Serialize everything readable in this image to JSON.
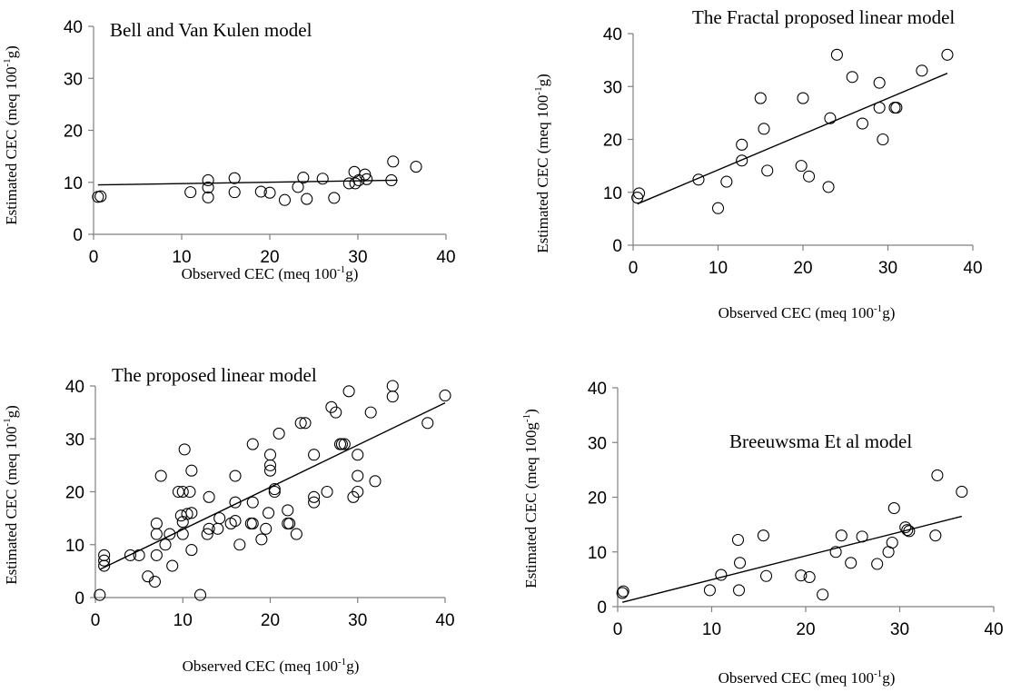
{
  "chart_data": [
    {
      "type": "scatter",
      "title": "Bell and Van Kulen model",
      "xlabel": "Observed CEC (meq 100",
      "xlabel_sup": "-1",
      "xlabel_end": "g)",
      "ylabel": "Estimated CEC (meq 100",
      "ylabel_sup": "-1",
      "ylabel_end": "g)",
      "xlim": [
        0,
        40
      ],
      "ylim": [
        0,
        40
      ],
      "xticks": [
        "0",
        "10",
        "20",
        "30",
        "40"
      ],
      "yticks": [
        "0",
        "10",
        "20",
        "30",
        "40"
      ],
      "x": [
        0.5,
        0.8,
        11,
        13,
        13,
        13,
        16,
        16,
        19,
        20,
        21.7,
        23.2,
        23.8,
        24.2,
        26,
        27.3,
        29,
        29.6,
        29.7,
        30.1,
        30.8,
        31,
        33.8,
        34,
        36.6
      ],
      "y": [
        7.2,
        7.3,
        8.1,
        7.1,
        9,
        10.4,
        8.1,
        10.8,
        8.2,
        8,
        6.6,
        9.1,
        10.9,
        6.8,
        10.7,
        7,
        9.8,
        12,
        9.8,
        10.4,
        11.5,
        10.6,
        10.4,
        14,
        13
      ],
      "trendline": {
        "x": [
          0.5,
          34.5
        ],
        "y": [
          9.5,
          10.4
        ]
      }
    },
    {
      "type": "scatter",
      "title": "The Fractal proposed linear model",
      "xlabel": "Observed CEC (meq 100",
      "xlabel_sup": "-1",
      "xlabel_end": "g)",
      "ylabel": "Estimated CEC (meq 100",
      "ylabel_sup": "-1",
      "ylabel_end": "g)",
      "xlim": [
        0,
        40
      ],
      "ylim": [
        0,
        40
      ],
      "xticks": [
        "0",
        "10",
        "20",
        "30",
        "40"
      ],
      "yticks": [
        "0",
        "10",
        "20",
        "30",
        "40"
      ],
      "x": [
        0.5,
        0.7,
        7.7,
        10,
        11,
        12.8,
        12.8,
        15,
        15.4,
        15.8,
        19.8,
        20,
        20.7,
        23,
        23.2,
        24,
        25.8,
        27,
        29,
        29,
        29.4,
        30.8,
        31,
        34,
        37
      ],
      "y": [
        9,
        9.8,
        12.4,
        7,
        12,
        16,
        19,
        27.8,
        22,
        14.1,
        15,
        27.8,
        13,
        11,
        24,
        36,
        31.8,
        23,
        30.7,
        26,
        20,
        26,
        26,
        33,
        36
      ],
      "trendline": {
        "x": [
          0.5,
          37
        ],
        "y": [
          7.8,
          32.5
        ]
      }
    },
    {
      "type": "scatter",
      "title": "The proposed linear model",
      "xlabel": "Observed CEC (meq 100",
      "xlabel_sup": "-1",
      "xlabel_end": "g)",
      "ylabel": "Estimated CEC (meq 100",
      "ylabel_sup": "-1",
      "ylabel_end": "g)",
      "xlim": [
        0,
        40
      ],
      "ylim": [
        0,
        40
      ],
      "xticks": [
        "0",
        "10",
        "20",
        "30",
        "40"
      ],
      "yticks": [
        "0",
        "10",
        "20",
        "30",
        "40"
      ],
      "x": [
        0.5,
        1,
        1,
        1,
        4,
        5,
        6,
        6.8,
        7,
        7,
        7,
        7.5,
        8,
        8.5,
        8.8,
        9.5,
        9.8,
        10,
        10,
        10,
        10.2,
        10.5,
        10.8,
        11,
        11,
        11,
        12,
        12.8,
        13,
        13,
        14,
        14.2,
        15.5,
        16,
        16,
        16,
        16.5,
        17.8,
        18,
        18,
        18,
        19,
        19.5,
        19.8,
        20,
        20,
        20,
        20.5,
        20.5,
        21,
        22,
        22,
        22.2,
        23,
        23.5,
        24,
        25,
        25,
        25,
        26.5,
        27,
        27.5,
        28,
        28.2,
        28.5,
        29,
        29.5,
        30,
        30,
        30,
        31.5,
        32,
        34,
        34,
        38,
        40
      ],
      "y": [
        0.5,
        6,
        7,
        8,
        8,
        8,
        4,
        3,
        8,
        12,
        14,
        23,
        10,
        12,
        6,
        20,
        15.5,
        12,
        14.3,
        20,
        28,
        15.8,
        20,
        9,
        16,
        24,
        0.5,
        12,
        13,
        19,
        13,
        15,
        14,
        14.5,
        18,
        23,
        10,
        14,
        14,
        18,
        29,
        11,
        13,
        16,
        24,
        27,
        25,
        20.5,
        20,
        31,
        14,
        16.5,
        14,
        12,
        33,
        33,
        18,
        19,
        27,
        20,
        36,
        35,
        29,
        29,
        29,
        39,
        19,
        23,
        27,
        20,
        35,
        22,
        38,
        40,
        33,
        38.2
      ],
      "trendline": {
        "x": [
          0.5,
          40
        ],
        "y": [
          5.3,
          36.8
        ]
      }
    },
    {
      "type": "scatter",
      "title": "Breeuwsma Et al model",
      "xlabel": "Observed CEC (meq 100",
      "xlabel_sup": "-1",
      "xlabel_end": "g)",
      "ylabel": "Estimated CEC (meq 100g",
      "ylabel_sup": "-1",
      "ylabel_end": ")",
      "xlim": [
        0,
        40
      ],
      "ylim": [
        0,
        40
      ],
      "xticks": [
        "0",
        "10",
        "20",
        "30",
        "40"
      ],
      "yticks": [
        "0",
        "10",
        "20",
        "30",
        "40"
      ],
      "x": [
        0.5,
        0.6,
        9.8,
        11,
        12.8,
        12.9,
        13,
        15.5,
        15.8,
        19.5,
        20.4,
        21.8,
        23.2,
        23.8,
        24.8,
        26,
        27.6,
        28.8,
        29.2,
        29.4,
        30.6,
        30.8,
        31,
        33.8,
        34,
        36.6
      ],
      "y": [
        2.5,
        2.8,
        3,
        5.8,
        12.2,
        3,
        8,
        13,
        5.6,
        5.7,
        5.4,
        2.2,
        10,
        13,
        8,
        12.8,
        7.8,
        10,
        11.7,
        18,
        14.5,
        14,
        13.8,
        13,
        24,
        21
      ],
      "trendline": {
        "x": [
          0.5,
          36.6
        ],
        "y": [
          0.8,
          16.5
        ]
      }
    }
  ]
}
